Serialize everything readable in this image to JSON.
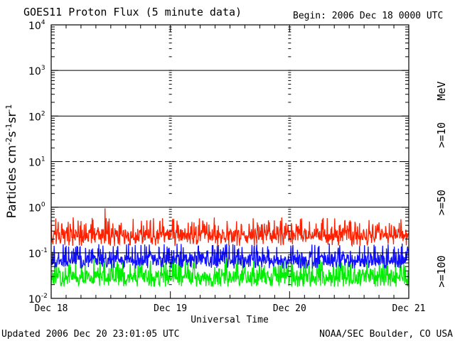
{
  "title": "GOES11 Proton Flux (5 minute data)",
  "begin": "Begin: 2006 Dec 18 0000 UTC",
  "updated": "Updated 2006 Dec 20 23:01:05 UTC",
  "source": "NOAA/SEC Boulder, CO USA",
  "colors": {
    "p10": "#ff2000",
    "p50": "#1010ff",
    "p100": "#00ee00",
    "axis": "#000000"
  },
  "chart_data": {
    "type": "line",
    "title": "GOES11 Proton Flux (5 minute data)",
    "xlabel": "Universal Time",
    "ylabel": "Particles cm-2 s-1 sr-1",
    "yscale": "log",
    "ylim": [
      0.01,
      10000
    ],
    "xlim_days": [
      0,
      3
    ],
    "x_ticks": [
      "Dec 18",
      "Dec 19",
      "Dec 20",
      "Dec 21"
    ],
    "y_ticks": [
      {
        "base": "10",
        "exp": "-2"
      },
      {
        "base": "10",
        "exp": "-1"
      },
      {
        "base": "10",
        "exp": "0"
      },
      {
        "base": "10",
        "exp": "1"
      },
      {
        "base": "10",
        "exp": "2"
      },
      {
        "base": "10",
        "exp": "3"
      },
      {
        "base": "10",
        "exp": "4"
      }
    ],
    "threshold_lines": [
      {
        "value": 0.1,
        "style": "solid"
      },
      {
        "value": 1,
        "style": "solid"
      },
      {
        "value": 10,
        "style": "dashed"
      },
      {
        "value": 100,
        "style": "solid"
      },
      {
        "value": 1000,
        "style": "solid"
      }
    ],
    "legend": [
      {
        "label": ">=10",
        "color_key": "p10"
      },
      {
        "label": ">=50",
        "color_key": "p50"
      },
      {
        "label": ">=100",
        "color_key": "p100"
      }
    ],
    "legend_unit": "MeV",
    "series": [
      {
        "name": ">=10 MeV",
        "color_key": "p10",
        "typical": 0.25,
        "low": 0.14,
        "high": 0.6,
        "peak": 0.95
      },
      {
        "name": ">=50 MeV",
        "color_key": "p50",
        "typical": 0.07,
        "low": 0.045,
        "high": 0.16,
        "peak": 0.2
      },
      {
        "name": ">=100 MeV",
        "color_key": "p100",
        "typical": 0.03,
        "low": 0.018,
        "high": 0.08,
        "peak": 0.1
      }
    ]
  }
}
